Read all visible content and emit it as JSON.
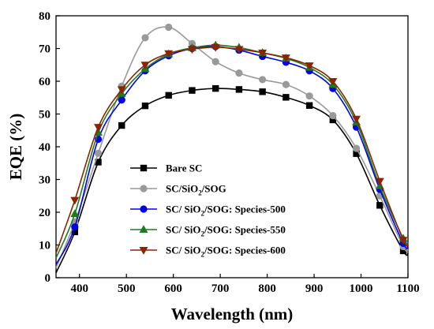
{
  "chart_data": {
    "type": "line",
    "xlabel": "Wavelength (nm)",
    "ylabel": "EQE (%)",
    "xlim": [
      350,
      1100
    ],
    "ylim": [
      0,
      80
    ],
    "xticks": [
      400,
      500,
      600,
      700,
      800,
      900,
      1000,
      1100
    ],
    "yticks": [
      0,
      10,
      20,
      30,
      40,
      50,
      60,
      70,
      80
    ],
    "legend_position": "center-left",
    "grid": false,
    "x": [
      350,
      390,
      440,
      490,
      540,
      590,
      640,
      690,
      740,
      790,
      840,
      890,
      940,
      990,
      1040,
      1090,
      1100
    ],
    "marker_x": [
      390,
      440,
      490,
      540,
      590,
      640,
      690,
      740,
      790,
      840,
      890,
      940,
      990,
      1040,
      1090
    ],
    "series": [
      {
        "name": "Bare SC",
        "color": "#000000",
        "marker": "square",
        "values": [
          1.5,
          14,
          35.3,
          46.5,
          52.5,
          55.7,
          57.2,
          57.8,
          57.5,
          56.8,
          55.1,
          52.6,
          48.2,
          37.9,
          22.1,
          8.2,
          7.3
        ]
      },
      {
        "name": "SC/SiO2/SOG",
        "legend_parts": [
          "SC/SiO",
          "2",
          "/SOG"
        ],
        "color": "#999999",
        "marker": "circle",
        "values": [
          3,
          17,
          38,
          58.5,
          73.3,
          76.5,
          71.5,
          66,
          62.5,
          60.5,
          59,
          55.5,
          49.5,
          39.5,
          25,
          9.5,
          8.5
        ]
      },
      {
        "name": "SC/ SiO2/SOG: Species-500",
        "legend_parts": [
          "SC/ SiO",
          "2",
          "/SOG: Species-500"
        ],
        "color": "#0000e6",
        "marker": "circle",
        "values": [
          4,
          15.5,
          42.3,
          54.3,
          63.2,
          67.8,
          70,
          70.6,
          69.5,
          67.6,
          65.8,
          63.2,
          57.8,
          46,
          27,
          10.5,
          9.5
        ]
      },
      {
        "name": "SC/ SiO2/SOG: Species-550",
        "legend_parts": [
          "SC/ SiO",
          "2",
          "/SOG: Species-550"
        ],
        "color": "#1f7a1f",
        "marker": "triangle-up",
        "values": [
          6,
          19.5,
          44.3,
          56.2,
          63.8,
          68.3,
          70.2,
          71,
          70.3,
          68.7,
          67,
          64.2,
          59,
          47.5,
          28,
          12,
          10.5
        ]
      },
      {
        "name": "SC/ SiO2/SOG: Species-600",
        "legend_parts": [
          "SC/ SiO",
          "2",
          "/SOG: Species-600"
        ],
        "color": "#8b2500",
        "marker": "triangle-down",
        "values": [
          7.5,
          23.7,
          46,
          57.5,
          65,
          68.5,
          69.8,
          70.4,
          69.8,
          68.7,
          67.2,
          64.8,
          60,
          48.5,
          29.5,
          11.5,
          10.2
        ]
      }
    ]
  }
}
